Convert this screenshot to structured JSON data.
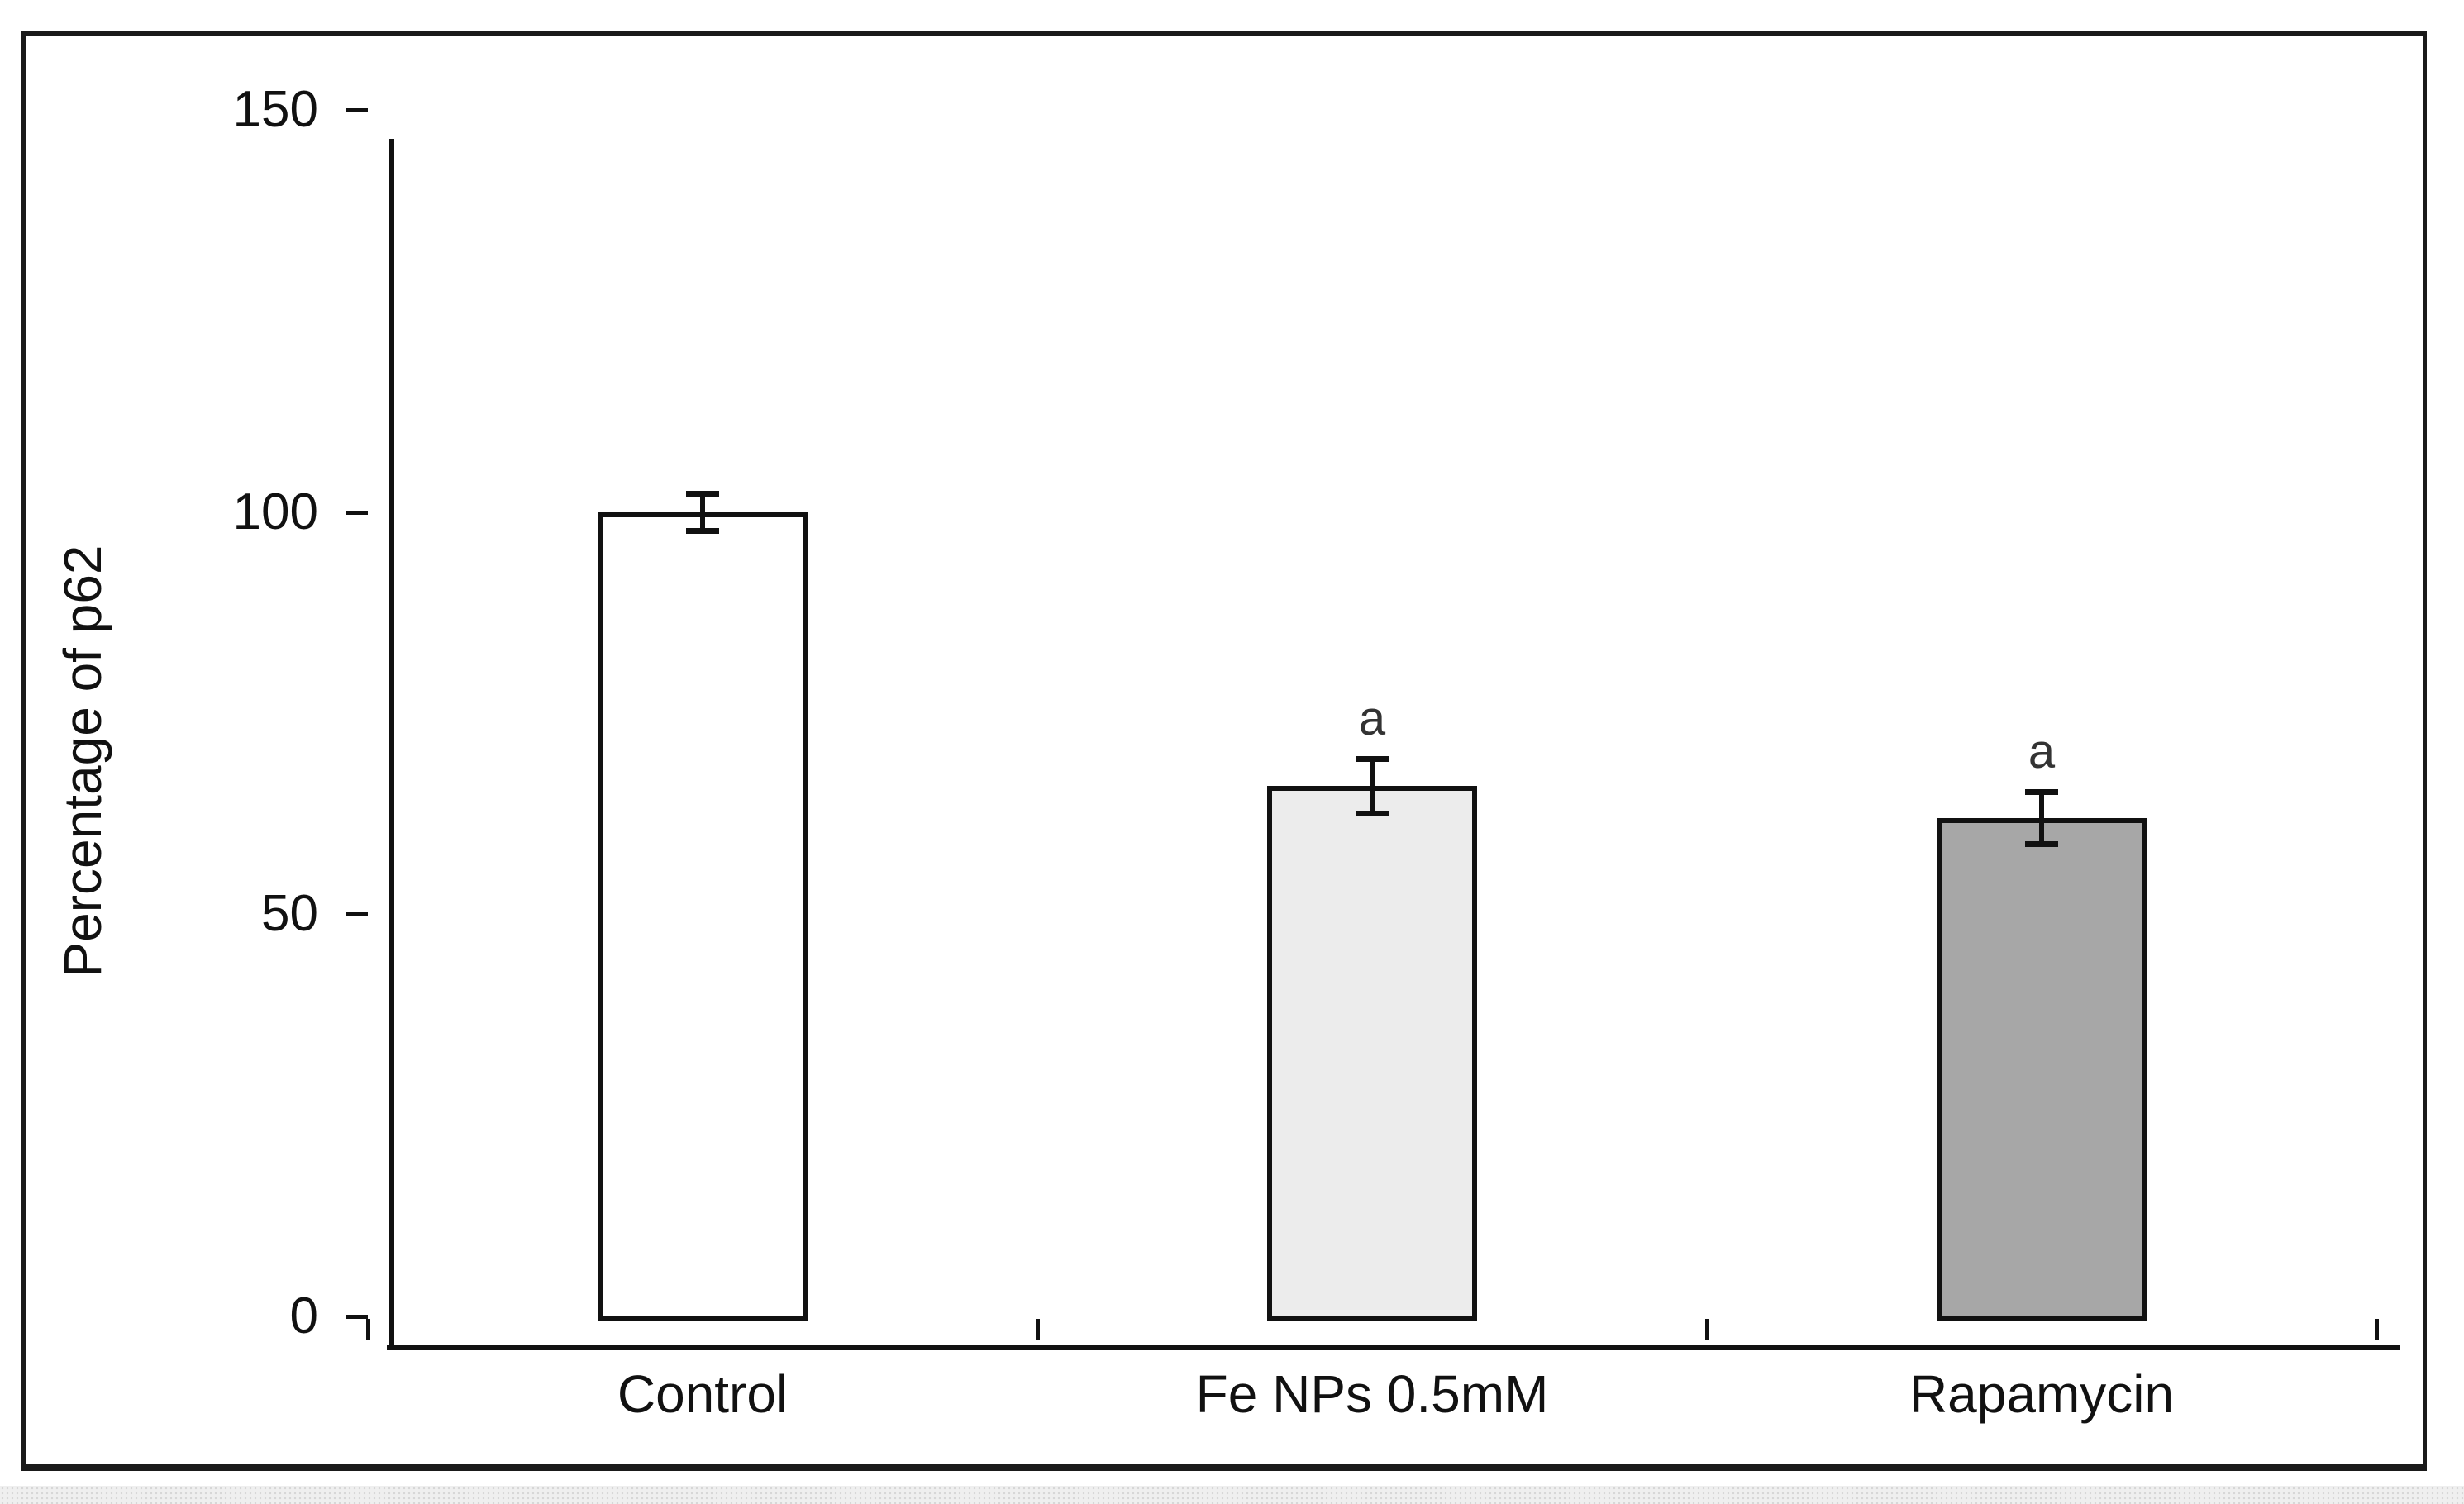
{
  "chart_data": {
    "type": "bar",
    "title": "",
    "ylabel": "Percentage of p62",
    "xlabel": "",
    "categories": [
      "Control",
      "Fe NPs 0.5mM",
      "Rapamycin"
    ],
    "values": [
      100,
      66,
      62
    ],
    "errors": [
      2.3,
      3.4,
      3.2
    ],
    "annotations": [
      "",
      "a",
      "a"
    ],
    "bar_fill_colors": [
      "#ffffff",
      "#ececec",
      "#a7a7a7"
    ],
    "bar_border_color": "#111111",
    "annotation_color": "#333333",
    "yticks": [
      0,
      50,
      100,
      150
    ],
    "ylim": [
      0,
      150
    ],
    "grid": "off",
    "legend": "none"
  }
}
